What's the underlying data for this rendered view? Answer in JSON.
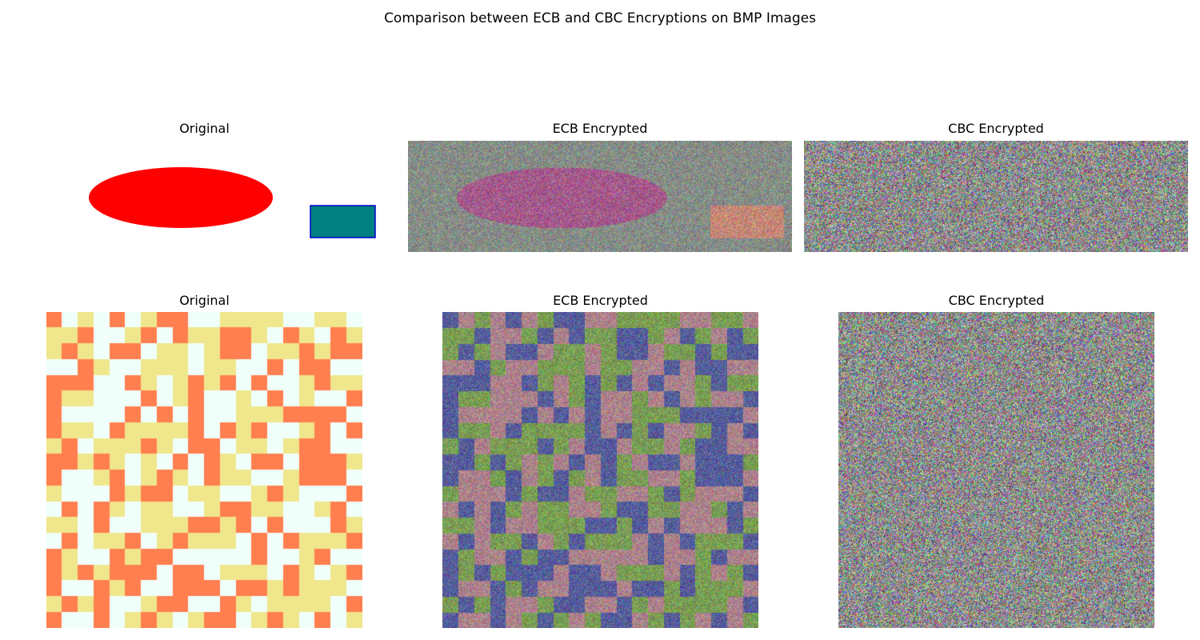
{
  "figure": {
    "title": "Comparison between ECB and CBC Encryptions on BMP Images"
  },
  "rows": [
    {
      "panels": [
        {
          "title": "Original",
          "kind": "shapes"
        },
        {
          "title": "ECB Encrypted",
          "kind": "ecb-shapes"
        },
        {
          "title": "CBC Encrypted",
          "kind": "noise"
        }
      ]
    },
    {
      "panels": [
        {
          "title": "Original",
          "kind": "grid"
        },
        {
          "title": "ECB Encrypted",
          "kind": "ecb-grid"
        },
        {
          "title": "CBC Encrypted",
          "kind": "noise"
        }
      ]
    }
  ],
  "colors": {
    "ellipse": "#ff0000",
    "rectangle_fill": "#008080",
    "rectangle_border": "#0000cd",
    "grid_palette": [
      "#ff7f50",
      "#f0e68c",
      "#f0fffa"
    ],
    "ecb_shapes_background": "#8a8a8a",
    "ecb_shapes_ellipse": "#a8578f",
    "ecb_shapes_rect": "#c9857a",
    "ecb_grid_palette": [
      "#5a5a9e",
      "#7e9a58",
      "#b07f8f"
    ]
  }
}
